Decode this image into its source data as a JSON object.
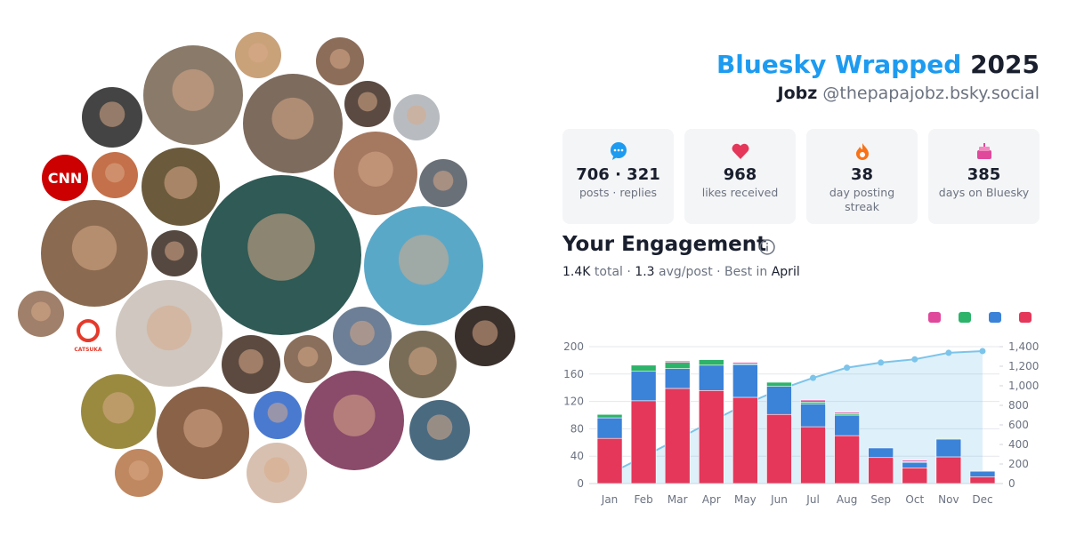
{
  "header": {
    "title": "Bluesky Wrapped",
    "year": "2025",
    "name": "Jobz",
    "handle": "@thepapajobz.bsky.social"
  },
  "avatar_labels": [
    "CNN",
    "CATSUKA"
  ],
  "stats": [
    {
      "value": "706 · 321",
      "label": "posts · replies"
    },
    {
      "value": "968",
      "label": "likes received"
    },
    {
      "value": "38",
      "label": "day posting streak"
    },
    {
      "value": "385",
      "label": "days on Bluesky"
    }
  ],
  "engagement": {
    "title": "Your Engagement",
    "summary": [
      "1.4K",
      " total · ",
      "1.3",
      " avg/post · Best in ",
      "April"
    ]
  },
  "chart_data": {
    "type": "bar",
    "stacked": true,
    "grid": true,
    "categories": [
      "Jan",
      "Feb",
      "Mar",
      "Apr",
      "May",
      "Jun",
      "Jul",
      "Aug",
      "Sep",
      "Oct",
      "Nov",
      "Dec"
    ],
    "series": [
      {
        "color": "#e4375a",
        "values": [
          66,
          121,
          139,
          136,
          126,
          101,
          83,
          70,
          38,
          23,
          39,
          10
        ]
      },
      {
        "color": "#3b82d9",
        "values": [
          30,
          43,
          29,
          37,
          48,
          41,
          33,
          30,
          14,
          8,
          26,
          8
        ]
      },
      {
        "color": "#2db36a",
        "values": [
          5,
          9,
          9,
          8,
          1,
          6,
          3,
          2,
          0,
          1,
          1,
          0
        ]
      },
      {
        "color": "#e0489c",
        "values": [
          0,
          0,
          2,
          0,
          2,
          0,
          3,
          2,
          0,
          2,
          0,
          0
        ]
      },
      {
        "type": "line",
        "axis": "y2",
        "color": "#7cc4ea",
        "values": [
          101,
          274,
          453,
          634,
          811,
          959,
          1081,
          1185,
          1237,
          1271,
          1337,
          1355
        ]
      }
    ],
    "ylim": [
      0,
      200
    ],
    "yticks": [
      0,
      40,
      80,
      120,
      160,
      200
    ],
    "y2lim": [
      0,
      1400
    ],
    "y2ticks": [
      0,
      200,
      400,
      600,
      800,
      {
        "value": 1000,
        "label": "1,000"
      },
      {
        "value": 1200,
        "label": "1,200"
      },
      {
        "value": 1400,
        "label": "1,400"
      }
    ]
  }
}
